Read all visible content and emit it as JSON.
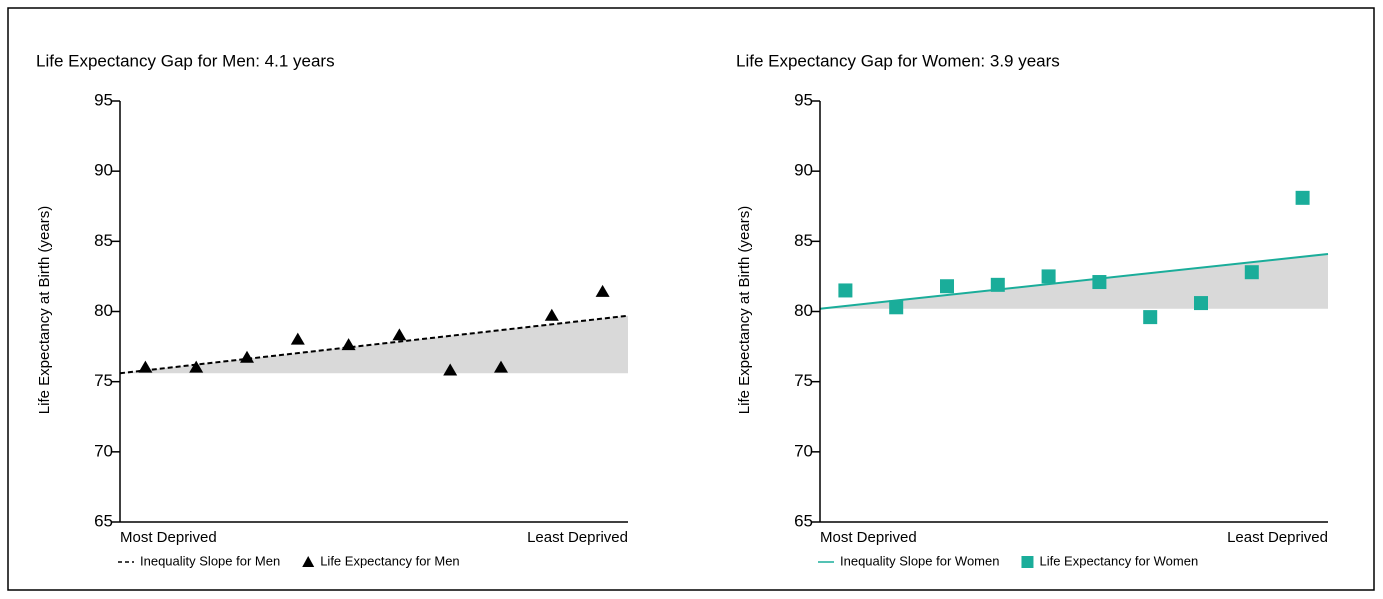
{
  "chart_data": [
    {
      "type": "scatter",
      "title": "Life Expectancy Gap for Men: 4.1 years",
      "y_label": "Life Expectancy at Birth (years)",
      "categories": [
        "Most Deprived",
        null,
        null,
        null,
        null,
        null,
        null,
        null,
        null,
        "Least Deprived"
      ],
      "series": [
        {
          "name": "Life Expectancy for Men",
          "color": "#000000",
          "marker": "triangle",
          "values": [
            76.0,
            76.0,
            76.7,
            78.0,
            77.6,
            78.3,
            75.8,
            76.0,
            79.7,
            81.4
          ]
        }
      ],
      "slope": {
        "name": "Inequality Slope for Men",
        "color": "#000000",
        "dashed": true,
        "values": [
          75.6,
          79.7
        ]
      },
      "shade_color": "#d9d9d9",
      "ylim": [
        65,
        95
      ],
      "yticks": [
        65,
        70,
        75,
        80,
        85,
        90,
        95
      ]
    },
    {
      "type": "scatter",
      "title": "Life Expectancy Gap for Women: 3.9 years",
      "y_label": "Life Expectancy at Birth (years)",
      "categories": [
        "Most Deprived",
        null,
        null,
        null,
        null,
        null,
        null,
        null,
        null,
        "Least Deprived"
      ],
      "series": [
        {
          "name": "Life Expectancy for Women",
          "color": "#1aad9a",
          "marker": "square",
          "values": [
            81.5,
            80.3,
            81.8,
            81.9,
            82.5,
            82.1,
            79.6,
            80.6,
            82.8,
            88.1
          ]
        }
      ],
      "slope": {
        "name": "Inequality Slope for Women",
        "color": "#1aad9a",
        "dashed": false,
        "values": [
          80.2,
          84.1
        ]
      },
      "shade_color": "#d9d9d9",
      "ylim": [
        65,
        95
      ],
      "yticks": [
        65,
        70,
        75,
        80,
        85,
        90,
        95
      ]
    }
  ]
}
